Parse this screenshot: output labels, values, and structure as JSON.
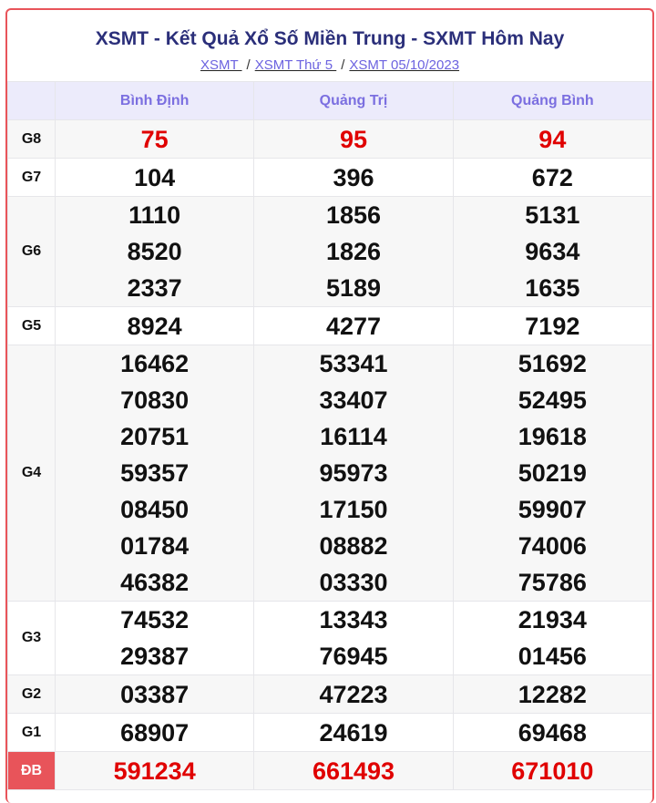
{
  "title": "XSMT - Kết Quả Xổ Số Miền Trung - SXMT Hôm Nay",
  "breadcrumb": [
    "XSMT ",
    "XSMT Thứ 5 ",
    "XSMT 05/10/2023"
  ],
  "provinces": [
    "Bình Định",
    "Quảng Trị",
    "Quảng Bình"
  ],
  "colors": {
    "accent": "#e8545a",
    "header_bg": "#ecebfb",
    "header_text": "#7b6fe0",
    "highlight": "#e00000"
  },
  "prizes": [
    {
      "label": "G8",
      "highlight": true,
      "values": [
        [
          "75"
        ],
        [
          "95"
        ],
        [
          "94"
        ]
      ]
    },
    {
      "label": "G7",
      "values": [
        [
          "104"
        ],
        [
          "396"
        ],
        [
          "672"
        ]
      ]
    },
    {
      "label": "G6",
      "values": [
        [
          "1110",
          "8520",
          "2337"
        ],
        [
          "1856",
          "1826",
          "5189"
        ],
        [
          "5131",
          "9634",
          "1635"
        ]
      ]
    },
    {
      "label": "G5",
      "values": [
        [
          "8924"
        ],
        [
          "4277"
        ],
        [
          "7192"
        ]
      ]
    },
    {
      "label": "G4",
      "values": [
        [
          "16462",
          "70830",
          "20751",
          "59357",
          "08450",
          "01784",
          "46382"
        ],
        [
          "53341",
          "33407",
          "16114",
          "95973",
          "17150",
          "08882",
          "03330"
        ],
        [
          "51692",
          "52495",
          "19618",
          "50219",
          "59907",
          "74006",
          "75786"
        ]
      ]
    },
    {
      "label": "G3",
      "values": [
        [
          "74532",
          "29387"
        ],
        [
          "13343",
          "76945"
        ],
        [
          "21934",
          "01456"
        ]
      ]
    },
    {
      "label": "G2",
      "values": [
        [
          "03387"
        ],
        [
          "47223"
        ],
        [
          "12282"
        ]
      ]
    },
    {
      "label": "G1",
      "values": [
        [
          "68907"
        ],
        [
          "24619"
        ],
        [
          "69468"
        ]
      ]
    },
    {
      "label": "ĐB",
      "highlight": true,
      "special": true,
      "values": [
        [
          "591234"
        ],
        [
          "661493"
        ],
        [
          "671010"
        ]
      ]
    }
  ]
}
